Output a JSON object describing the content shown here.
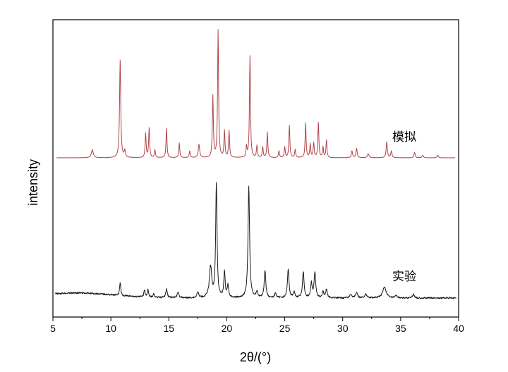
{
  "chart_data": {
    "type": "line",
    "title": "",
    "xlabel": "2θ/(°)",
    "ylabel": "intensity",
    "xlim": [
      5,
      40
    ],
    "xticks": [
      5,
      10,
      15,
      20,
      25,
      30,
      35,
      40
    ],
    "grid": false,
    "legend": "none (series labelled inline, right side above each trace)",
    "colors": {
      "simulated": "#b0454a",
      "experimental": "#1a1a1a",
      "axes": "#000000"
    },
    "series": [
      {
        "name": "模拟",
        "baseline": 0.0,
        "peaks": [
          {
            "x": 8.4,
            "h": 0.06,
            "w": 0.1
          },
          {
            "x": 10.8,
            "h": 0.73,
            "w": 0.06
          },
          {
            "x": 11.2,
            "h": 0.05,
            "w": 0.06
          },
          {
            "x": 13.0,
            "h": 0.18,
            "w": 0.05
          },
          {
            "x": 13.3,
            "h": 0.22,
            "w": 0.05
          },
          {
            "x": 13.8,
            "h": 0.06,
            "w": 0.05
          },
          {
            "x": 14.8,
            "h": 0.22,
            "w": 0.05
          },
          {
            "x": 15.9,
            "h": 0.11,
            "w": 0.05
          },
          {
            "x": 16.8,
            "h": 0.05,
            "w": 0.05
          },
          {
            "x": 17.6,
            "h": 0.1,
            "w": 0.07
          },
          {
            "x": 18.8,
            "h": 0.46,
            "w": 0.05
          },
          {
            "x": 19.25,
            "h": 0.95,
            "w": 0.05
          },
          {
            "x": 19.8,
            "h": 0.2,
            "w": 0.05
          },
          {
            "x": 20.2,
            "h": 0.2,
            "w": 0.05
          },
          {
            "x": 21.7,
            "h": 0.08,
            "w": 0.05
          },
          {
            "x": 22.0,
            "h": 0.76,
            "w": 0.05
          },
          {
            "x": 22.6,
            "h": 0.09,
            "w": 0.05
          },
          {
            "x": 23.1,
            "h": 0.08,
            "w": 0.05
          },
          {
            "x": 23.5,
            "h": 0.19,
            "w": 0.05
          },
          {
            "x": 24.5,
            "h": 0.05,
            "w": 0.05
          },
          {
            "x": 25.0,
            "h": 0.08,
            "w": 0.05
          },
          {
            "x": 25.4,
            "h": 0.24,
            "w": 0.05
          },
          {
            "x": 25.9,
            "h": 0.06,
            "w": 0.05
          },
          {
            "x": 26.8,
            "h": 0.26,
            "w": 0.05
          },
          {
            "x": 27.2,
            "h": 0.1,
            "w": 0.05
          },
          {
            "x": 27.5,
            "h": 0.11,
            "w": 0.05
          },
          {
            "x": 27.9,
            "h": 0.26,
            "w": 0.05
          },
          {
            "x": 28.3,
            "h": 0.08,
            "w": 0.05
          },
          {
            "x": 28.6,
            "h": 0.13,
            "w": 0.05
          },
          {
            "x": 30.8,
            "h": 0.05,
            "w": 0.06
          },
          {
            "x": 31.2,
            "h": 0.07,
            "w": 0.06
          },
          {
            "x": 32.2,
            "h": 0.03,
            "w": 0.08
          },
          {
            "x": 33.8,
            "h": 0.12,
            "w": 0.06
          },
          {
            "x": 34.2,
            "h": 0.05,
            "w": 0.06
          },
          {
            "x": 36.2,
            "h": 0.04,
            "w": 0.06
          },
          {
            "x": 36.9,
            "h": 0.02,
            "w": 0.06
          },
          {
            "x": 38.2,
            "h": 0.02,
            "w": 0.06
          }
        ]
      },
      {
        "name": "实验",
        "baseline": 0.0,
        "peaks": [
          {
            "x": 10.8,
            "h": 0.11,
            "w": 0.06
          },
          {
            "x": 12.9,
            "h": 0.06,
            "w": 0.06
          },
          {
            "x": 13.2,
            "h": 0.07,
            "w": 0.06
          },
          {
            "x": 13.7,
            "h": 0.03,
            "w": 0.06
          },
          {
            "x": 14.8,
            "h": 0.07,
            "w": 0.08
          },
          {
            "x": 15.8,
            "h": 0.05,
            "w": 0.08
          },
          {
            "x": 17.5,
            "h": 0.05,
            "w": 0.08
          },
          {
            "x": 18.6,
            "h": 0.26,
            "w": 0.12
          },
          {
            "x": 19.1,
            "h": 0.95,
            "w": 0.07
          },
          {
            "x": 19.8,
            "h": 0.22,
            "w": 0.07
          },
          {
            "x": 20.1,
            "h": 0.1,
            "w": 0.07
          },
          {
            "x": 21.9,
            "h": 0.93,
            "w": 0.08
          },
          {
            "x": 22.6,
            "h": 0.05,
            "w": 0.08
          },
          {
            "x": 23.3,
            "h": 0.23,
            "w": 0.08
          },
          {
            "x": 24.2,
            "h": 0.04,
            "w": 0.08
          },
          {
            "x": 25.3,
            "h": 0.24,
            "w": 0.08
          },
          {
            "x": 25.8,
            "h": 0.05,
            "w": 0.08
          },
          {
            "x": 26.6,
            "h": 0.22,
            "w": 0.08
          },
          {
            "x": 27.3,
            "h": 0.12,
            "w": 0.08
          },
          {
            "x": 27.6,
            "h": 0.21,
            "w": 0.08
          },
          {
            "x": 28.3,
            "h": 0.05,
            "w": 0.08
          },
          {
            "x": 28.6,
            "h": 0.07,
            "w": 0.08
          },
          {
            "x": 30.7,
            "h": 0.03,
            "w": 0.1
          },
          {
            "x": 31.2,
            "h": 0.04,
            "w": 0.1
          },
          {
            "x": 32.0,
            "h": 0.03,
            "w": 0.12
          },
          {
            "x": 33.6,
            "h": 0.09,
            "w": 0.18
          },
          {
            "x": 34.6,
            "h": 0.02,
            "w": 0.1
          },
          {
            "x": 36.1,
            "h": 0.03,
            "w": 0.1
          }
        ]
      }
    ]
  }
}
